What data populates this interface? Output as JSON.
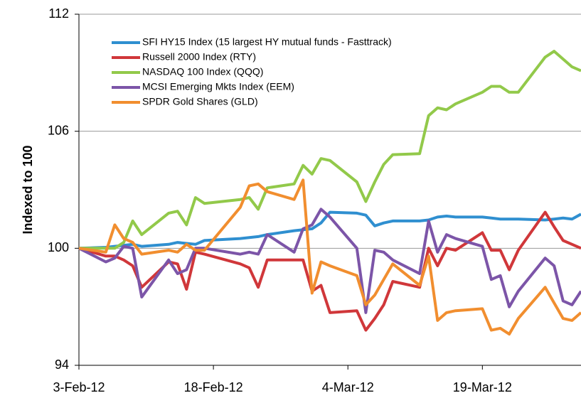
{
  "chart_data": {
    "type": "line",
    "y_label": "Indexed to 100",
    "x": [
      "2012-02-03",
      "2012-02-06",
      "2012-02-07",
      "2012-02-08",
      "2012-02-09",
      "2012-02-10",
      "2012-02-13",
      "2012-02-14",
      "2012-02-15",
      "2012-02-16",
      "2012-02-17",
      "2012-02-21",
      "2012-02-22",
      "2012-02-23",
      "2012-02-24",
      "2012-02-27",
      "2012-02-28",
      "2012-02-29",
      "2012-03-01",
      "2012-03-02",
      "2012-03-05",
      "2012-03-06",
      "2012-03-07",
      "2012-03-08",
      "2012-03-09",
      "2012-03-12",
      "2012-03-13",
      "2012-03-14",
      "2012-03-15",
      "2012-03-16",
      "2012-03-19",
      "2012-03-20",
      "2012-03-21",
      "2012-03-22",
      "2012-03-23",
      "2012-03-26",
      "2012-03-27",
      "2012-03-28",
      "2012-03-29",
      "2012-03-30"
    ],
    "series": [
      {
        "name": "SFI HY15 Index (15 largest HY mutual funds - Fasttrack)",
        "color": "#2f8fd0",
        "values": [
          100,
          100.05,
          100.1,
          100.15,
          100.2,
          100.1,
          100.2,
          100.3,
          100.25,
          100.2,
          100.4,
          100.5,
          100.55,
          100.6,
          100.7,
          100.9,
          100.95,
          101.0,
          101.3,
          101.85,
          101.8,
          101.7,
          101.15,
          101.3,
          101.4,
          101.4,
          101.45,
          101.6,
          101.65,
          101.6,
          101.6,
          101.55,
          101.5,
          101.5,
          101.5,
          101.45,
          101.5,
          101.55,
          101.5,
          101.75
        ]
      },
      {
        "name": "Russell 2000 Index (RTY)",
        "color": "#d0373a",
        "values": [
          100,
          99.6,
          99.6,
          99.4,
          99.1,
          98.0,
          99.3,
          99.2,
          97.9,
          99.8,
          99.7,
          99.2,
          99.0,
          98.0,
          99.4,
          99.4,
          99.4,
          97.8,
          98.1,
          96.7,
          96.8,
          95.8,
          96.4,
          97.1,
          98.3,
          98.0,
          100,
          99.1,
          100,
          99.9,
          100.8,
          99.9,
          99.9,
          98.9,
          99.9,
          101.85,
          101.1,
          100.4,
          100.2,
          100
        ]
      },
      {
        "name": "NASDAQ 100 Index (QQQ)",
        "color": "#92c94a",
        "values": [
          100,
          100.0,
          100.0,
          100.3,
          101.4,
          100.7,
          101.8,
          101.9,
          101.2,
          102.6,
          102.3,
          102.5,
          102.6,
          102.0,
          103.1,
          103.3,
          104.25,
          103.8,
          104.6,
          104.5,
          103.4,
          102.4,
          103.4,
          104.3,
          104.8,
          104.85,
          106.8,
          107.2,
          107.1,
          107.4,
          108.0,
          108.3,
          108.3,
          108.0,
          108.0,
          109.8,
          110.1,
          109.7,
          109.3,
          109.1
        ]
      },
      {
        "name": "MCSI Emerging Mkts Index (EEM)",
        "color": "#7c55a8",
        "values": [
          100,
          99.3,
          99.5,
          100.1,
          100.0,
          97.5,
          99.4,
          98.7,
          98.9,
          100,
          100,
          99.7,
          99.8,
          99.7,
          100.7,
          99.8,
          101.0,
          101.2,
          102.0,
          101.6,
          100,
          96.7,
          99.9,
          99.8,
          99.4,
          98.7,
          101.4,
          99.8,
          100.7,
          100.5,
          100.1,
          98.4,
          98.6,
          97.0,
          97.8,
          99.5,
          99.1,
          97.3,
          97.1,
          97.8
        ]
      },
      {
        "name": "SPDR Gold Shares (GLD)",
        "color": "#f18e2f",
        "values": [
          100,
          99.8,
          101.2,
          100.5,
          100.3,
          99.7,
          99.9,
          99.8,
          100.2,
          99.9,
          99.9,
          102.1,
          103.2,
          103.3,
          102.9,
          102.5,
          103.5,
          97.7,
          99.3,
          99.1,
          98.6,
          97.1,
          97.6,
          98.4,
          99.2,
          98.1,
          99.6,
          96.3,
          96.7,
          96.8,
          96.9,
          95.8,
          95.9,
          95.6,
          96.4,
          98.0,
          97.2,
          96.4,
          96.3,
          96.7
        ]
      }
    ],
    "xlim": [
      "2012-02-03",
      "2012-03-30"
    ],
    "xticks": [
      {
        "value": "2012-02-03",
        "label": "3-Feb-12"
      },
      {
        "value": "2012-02-18",
        "label": "18-Feb-12"
      },
      {
        "value": "2012-03-04",
        "label": "4-Mar-12"
      },
      {
        "value": "2012-03-19",
        "label": "19-Mar-12"
      }
    ],
    "ylim": [
      94,
      112
    ],
    "yticks": [
      94,
      100,
      106,
      112
    ],
    "grid": true,
    "legend": "upper left"
  }
}
